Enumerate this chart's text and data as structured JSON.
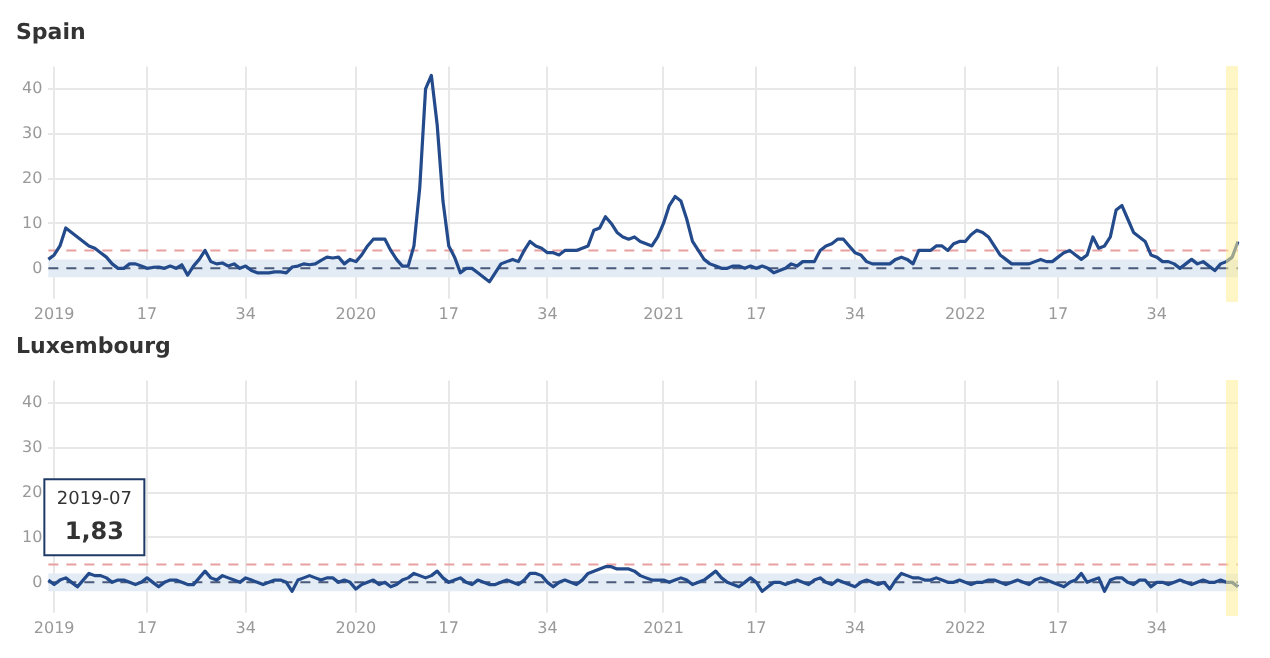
{
  "chart_data": [
    {
      "type": "line",
      "title": "Spain",
      "ylim": [
        -5,
        45
      ],
      "yticks": [
        0,
        10,
        20,
        30,
        40
      ],
      "grid": true,
      "categories": [
        null,
        "2019",
        null,
        null,
        null,
        null,
        null,
        null,
        null,
        null,
        null,
        null,
        null,
        null,
        null,
        null,
        null,
        "17",
        null,
        null,
        null,
        null,
        null,
        null,
        null,
        null,
        null,
        null,
        null,
        null,
        null,
        null,
        null,
        null,
        "34",
        null,
        null,
        null,
        null,
        null,
        null,
        null,
        null,
        null,
        null,
        null,
        null,
        null,
        null,
        null,
        null,
        null,
        null,
        "2020",
        null,
        null,
        null,
        null,
        null,
        null,
        null,
        null,
        null,
        null,
        null,
        null,
        null,
        null,
        null,
        "17",
        null,
        null,
        null,
        null,
        null,
        null,
        null,
        null,
        null,
        null,
        null,
        null,
        null,
        null,
        null,
        null,
        "34",
        null,
        null,
        null,
        null,
        null,
        null,
        null,
        null,
        null,
        null,
        null,
        null,
        null,
        null,
        null,
        null,
        null,
        null,
        null,
        "2021",
        null,
        null,
        null,
        null,
        null,
        null,
        null,
        null,
        null,
        null,
        null,
        null,
        null,
        null,
        null,
        "17",
        null,
        null,
        null,
        null,
        null,
        null,
        null,
        null,
        null,
        null,
        null,
        null,
        null,
        null,
        null,
        null,
        "34",
        null,
        null,
        null,
        null,
        null,
        null,
        null,
        null,
        null,
        null,
        null,
        null,
        null,
        null,
        null,
        null,
        null,
        null,
        "2022",
        null,
        null,
        null,
        null,
        null,
        null,
        null,
        null,
        null,
        null,
        null,
        null,
        null,
        null,
        null,
        "17",
        null,
        null,
        null,
        null,
        null,
        null,
        null,
        null,
        null,
        null,
        null,
        null,
        null,
        null,
        null,
        null,
        "34",
        null,
        null,
        null,
        null,
        null,
        null,
        null,
        null,
        null,
        null,
        null,
        null,
        null,
        null
      ],
      "ref_lines": [
        {
          "axis": "y",
          "value": 0,
          "color": "#4a5a7a",
          "line_style": "dashed"
        },
        {
          "axis": "y",
          "value": 4,
          "color": "#e8a0a0",
          "line_style": "dashed"
        }
      ],
      "bands": [
        {
          "axis": "y",
          "from": -2,
          "to": 2,
          "color": "#e3ebf5"
        }
      ],
      "series": [
        {
          "color": "#234a8a",
          "values": [
            2,
            3,
            5,
            9,
            8,
            7,
            6,
            5,
            4.5,
            3.5,
            2.5,
            1,
            0,
            0,
            1,
            1,
            0.5,
            0,
            0.2,
            0.3,
            0,
            0.5,
            0,
            0.8,
            -1.5,
            0.5,
            2,
            4,
            1.5,
            1,
            1.2,
            0.5,
            1,
            0,
            0.5,
            -0.5,
            -1,
            -1,
            -1,
            -0.8,
            -0.8,
            -1,
            0.3,
            0.5,
            1,
            0.8,
            1,
            1.8,
            2.5,
            2.3,
            2.5,
            1,
            2,
            1.5,
            3,
            5,
            6.5,
            6.5,
            6.5,
            4,
            2,
            0.5,
            0.5,
            5,
            18,
            40,
            43,
            32,
            15,
            5,
            2.5,
            -1,
            0,
            0,
            -1,
            -2,
            -3,
            -1,
            1,
            1.5,
            2,
            1.5,
            4,
            6,
            5,
            4.5,
            3.5,
            3.5,
            3,
            4,
            4,
            4,
            4.5,
            5,
            8.5,
            9,
            11.5,
            10,
            8,
            7,
            6.5,
            7,
            6,
            5.5,
            5,
            7,
            10,
            14,
            16,
            15,
            11,
            6,
            4,
            2,
            1,
            0.5,
            0,
            0,
            0.5,
            0.5,
            0,
            0.5,
            0,
            0.5,
            0,
            -1,
            -0.5,
            0,
            1,
            0.5,
            1.5,
            1.5,
            1.5,
            4,
            5,
            5.5,
            6.5,
            6.5,
            5,
            3.5,
            3,
            1.5,
            1,
            1,
            1,
            1,
            2,
            2.5,
            2,
            1,
            4,
            4,
            4,
            5,
            5,
            4,
            5.5,
            6,
            6,
            7.5,
            8.5,
            8,
            7,
            5,
            3,
            2,
            1,
            1,
            1,
            1,
            1.5,
            2,
            1.5,
            1.5,
            2.5,
            3.5,
            4,
            3,
            2,
            3,
            7,
            4.5,
            5,
            7,
            13,
            14,
            11,
            8,
            7,
            6,
            3,
            2.5,
            1.5,
            1.5,
            1,
            0,
            1,
            2,
            1,
            1.5,
            0.5,
            -0.5,
            1,
            1.5,
            2.5,
            6
          ]
        }
      ]
    },
    {
      "type": "line",
      "title": "Luxembourg",
      "ylim": [
        -5,
        45
      ],
      "yticks": [
        0,
        10,
        20,
        30,
        40
      ],
      "grid": true,
      "categories": [
        null,
        "2019",
        null,
        null,
        null,
        null,
        null,
        null,
        null,
        null,
        null,
        null,
        null,
        null,
        null,
        null,
        null,
        "17",
        null,
        null,
        null,
        null,
        null,
        null,
        null,
        null,
        null,
        null,
        null,
        null,
        null,
        null,
        null,
        null,
        "34",
        null,
        null,
        null,
        null,
        null,
        null,
        null,
        null,
        null,
        null,
        null,
        null,
        null,
        null,
        null,
        null,
        null,
        null,
        "2020",
        null,
        null,
        null,
        null,
        null,
        null,
        null,
        null,
        null,
        null,
        null,
        null,
        null,
        null,
        null,
        "17",
        null,
        null,
        null,
        null,
        null,
        null,
        null,
        null,
        null,
        null,
        null,
        null,
        null,
        null,
        null,
        null,
        "34",
        null,
        null,
        null,
        null,
        null,
        null,
        null,
        null,
        null,
        null,
        null,
        null,
        null,
        null,
        null,
        null,
        null,
        null,
        null,
        "2021",
        null,
        null,
        null,
        null,
        null,
        null,
        null,
        null,
        null,
        null,
        null,
        null,
        null,
        null,
        null,
        "17",
        null,
        null,
        null,
        null,
        null,
        null,
        null,
        null,
        null,
        null,
        null,
        null,
        null,
        null,
        null,
        null,
        "34",
        null,
        null,
        null,
        null,
        null,
        null,
        null,
        null,
        null,
        null,
        null,
        null,
        null,
        null,
        null,
        null,
        null,
        null,
        "2022",
        null,
        null,
        null,
        null,
        null,
        null,
        null,
        null,
        null,
        null,
        null,
        null,
        null,
        null,
        null,
        "17",
        null,
        null,
        null,
        null,
        null,
        null,
        null,
        null,
        null,
        null,
        null,
        null,
        null,
        null,
        null,
        null,
        "34",
        null,
        null,
        null,
        null,
        null,
        null,
        null,
        null,
        null,
        null,
        null,
        null,
        null,
        null
      ],
      "ref_lines": [
        {
          "axis": "y",
          "value": 0,
          "color": "#4a5a7a",
          "line_style": "dashed"
        },
        {
          "axis": "y",
          "value": 4,
          "color": "#e8a0a0",
          "line_style": "dashed"
        }
      ],
      "bands": [
        {
          "axis": "y",
          "from": -2,
          "to": 2,
          "color": "#e3ebf5"
        }
      ],
      "annotations": [
        "2019-07",
        "1,83"
      ],
      "series": [
        {
          "color": "#234a8a",
          "values": [
            0.5,
            -0.5,
            0.5,
            1,
            0,
            -1,
            0.5,
            2,
            1.5,
            1.5,
            1,
            0,
            0.5,
            0.5,
            0,
            -0.5,
            0,
            1,
            0,
            -1,
            0,
            0.5,
            0.5,
            0,
            -0.5,
            -0.5,
            1,
            2.5,
            1,
            0.5,
            1.5,
            1,
            0.5,
            0,
            1,
            0.5,
            0,
            -0.5,
            0,
            0.5,
            0.5,
            0,
            -2,
            0.5,
            1,
            1.5,
            1,
            0.5,
            1,
            1,
            0,
            0.5,
            0,
            -1.5,
            -0.5,
            0,
            0.5,
            -0.5,
            0,
            -1,
            -0.5,
            0.5,
            1,
            2,
            1.5,
            1,
            1.5,
            2.5,
            1,
            0,
            0.5,
            1,
            0,
            -0.5,
            0.5,
            0,
            -0.5,
            -0.5,
            0,
            0.5,
            0,
            -0.5,
            0.5,
            2,
            2,
            1.5,
            0,
            -1,
            0,
            0.5,
            0,
            -0.5,
            0.5,
            2,
            2.5,
            3,
            3.5,
            3.5,
            3,
            3,
            3,
            2.5,
            1.5,
            1,
            0.5,
            0.5,
            0.5,
            0,
            0.5,
            1,
            0.5,
            -0.5,
            0,
            0.5,
            1.5,
            2.5,
            1,
            0,
            -0.5,
            -1,
            0,
            1,
            0,
            -2,
            -1,
            0,
            0,
            -0.5,
            0,
            0.5,
            0,
            -0.5,
            0.5,
            1,
            0,
            -0.5,
            0.5,
            0,
            -0.5,
            -1,
            0,
            0.5,
            0,
            -0.5,
            0,
            -1.5,
            0.5,
            2,
            1.5,
            1,
            1,
            0.5,
            0.5,
            1,
            0.5,
            0,
            0,
            0.5,
            0,
            -0.5,
            0,
            0,
            0.5,
            0.5,
            0,
            -0.5,
            0,
            0.5,
            0,
            -0.5,
            0.5,
            1,
            0.5,
            0,
            -0.5,
            -1,
            0,
            0.5,
            2,
            0,
            0.5,
            1,
            -2,
            0.5,
            1,
            1,
            0,
            -0.5,
            0.5,
            0.5,
            -1,
            0,
            0,
            -0.5,
            0,
            0.5,
            0,
            -0.5,
            0,
            0.5,
            0,
            0,
            0.5,
            0,
            0,
            -1
          ]
        }
      ]
    }
  ]
}
